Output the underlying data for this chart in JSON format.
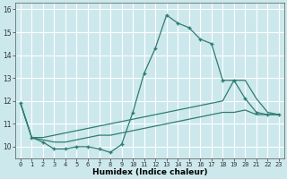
{
  "xlabel": "Humidex (Indice chaleur)",
  "background_color": "#cce8ec",
  "grid_color": "#ffffff",
  "line_color": "#2d7d6f",
  "xlim": [
    -0.5,
    23.5
  ],
  "ylim": [
    9.5,
    16.3
  ],
  "yticks": [
    10,
    11,
    12,
    13,
    14,
    15,
    16
  ],
  "xticks": [
    0,
    1,
    2,
    3,
    4,
    5,
    6,
    7,
    8,
    9,
    10,
    11,
    12,
    13,
    14,
    15,
    16,
    17,
    18,
    19,
    20,
    21,
    22,
    23
  ],
  "series": [
    [
      0,
      11.9
    ],
    [
      1,
      10.4
    ],
    [
      2,
      10.2
    ],
    [
      3,
      9.9
    ],
    [
      4,
      9.9
    ],
    [
      5,
      10.0
    ],
    [
      6,
      10.0
    ],
    [
      7,
      9.9
    ],
    [
      8,
      9.75
    ],
    [
      9,
      10.1
    ],
    [
      10,
      11.5
    ],
    [
      11,
      13.2
    ],
    [
      12,
      14.3
    ],
    [
      13,
      15.75
    ],
    [
      14,
      15.4
    ],
    [
      15,
      15.2
    ],
    [
      16,
      14.7
    ],
    [
      17,
      14.5
    ],
    [
      18,
      12.9
    ],
    [
      19,
      12.9
    ],
    [
      20,
      12.1
    ],
    [
      21,
      11.5
    ],
    [
      22,
      11.4
    ],
    [
      23,
      11.4
    ]
  ],
  "series2": [
    [
      0,
      11.9
    ],
    [
      1,
      10.4
    ],
    [
      2,
      10.4
    ],
    [
      3,
      10.5
    ],
    [
      4,
      10.6
    ],
    [
      5,
      10.7
    ],
    [
      6,
      10.8
    ],
    [
      7,
      10.9
    ],
    [
      8,
      11.0
    ],
    [
      9,
      11.1
    ],
    [
      10,
      11.2
    ],
    [
      11,
      11.3
    ],
    [
      12,
      11.4
    ],
    [
      13,
      11.5
    ],
    [
      14,
      11.6
    ],
    [
      15,
      11.7
    ],
    [
      16,
      11.8
    ],
    [
      17,
      11.9
    ],
    [
      18,
      12.0
    ],
    [
      19,
      12.9
    ],
    [
      20,
      12.9
    ],
    [
      21,
      12.1
    ],
    [
      22,
      11.5
    ],
    [
      23,
      11.4
    ]
  ],
  "series3": [
    [
      0,
      11.9
    ],
    [
      1,
      10.4
    ],
    [
      2,
      10.3
    ],
    [
      3,
      10.2
    ],
    [
      4,
      10.2
    ],
    [
      5,
      10.3
    ],
    [
      6,
      10.4
    ],
    [
      7,
      10.5
    ],
    [
      8,
      10.5
    ],
    [
      9,
      10.6
    ],
    [
      10,
      10.7
    ],
    [
      11,
      10.8
    ],
    [
      12,
      10.9
    ],
    [
      13,
      11.0
    ],
    [
      14,
      11.1
    ],
    [
      15,
      11.2
    ],
    [
      16,
      11.3
    ],
    [
      17,
      11.4
    ],
    [
      18,
      11.5
    ],
    [
      19,
      11.5
    ],
    [
      20,
      11.6
    ],
    [
      21,
      11.4
    ],
    [
      22,
      11.4
    ],
    [
      23,
      11.4
    ]
  ]
}
